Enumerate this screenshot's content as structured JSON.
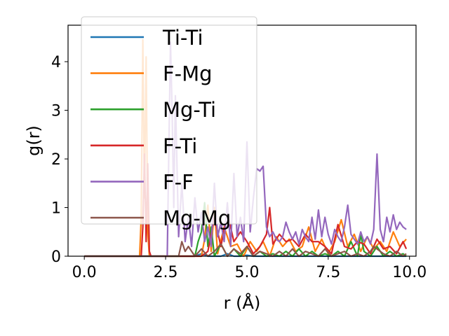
{
  "chart_data": {
    "type": "line",
    "xlabel": "r (Å)",
    "ylabel": "g(r)",
    "xlim": [
      -0.5,
      10.2
    ],
    "ylim": [
      0,
      4.75
    ],
    "xticks": [
      0.0,
      2.5,
      5.0,
      7.5,
      10.0
    ],
    "xtick_labels": [
      "0.0",
      "2.5",
      "5.0",
      "7.5",
      "10.0"
    ],
    "yticks": [
      0,
      1,
      2,
      3,
      4
    ],
    "ytick_labels": [
      "0",
      "1",
      "2",
      "3",
      "4"
    ],
    "grid": false,
    "legend_position": "upper-left",
    "series": [
      {
        "name": "Ti-Ti",
        "color": "#1f77b4",
        "x": [
          0.0,
          2.8,
          3.0,
          3.2,
          3.4,
          3.6,
          3.8,
          4.0,
          4.2,
          4.4,
          4.6,
          4.8,
          5.0,
          5.2,
          5.4,
          5.6,
          5.8,
          6.0,
          6.2,
          6.4,
          6.6,
          6.8,
          7.0,
          7.2,
          7.4,
          7.6,
          7.8,
          8.0,
          8.2,
          8.4,
          8.6,
          8.8,
          9.0,
          9.2,
          9.4,
          9.6,
          9.8,
          9.9
        ],
        "y": [
          0.0,
          0.0,
          0.0,
          0.0,
          0.0,
          0.05,
          0.0,
          0.0,
          0.0,
          0.05,
          0.0,
          0.0,
          0.02,
          0.0,
          0.0,
          0.0,
          0.0,
          0.0,
          0.0,
          0.0,
          0.0,
          0.0,
          0.0,
          0.0,
          0.0,
          0.0,
          0.0,
          0.0,
          0.0,
          0.0,
          0.0,
          0.0,
          0.0,
          0.0,
          0.0,
          0.0,
          0.0,
          0.0
        ]
      },
      {
        "name": "F-Mg",
        "color": "#ff7f0e",
        "x": [
          0.0,
          1.7,
          1.75,
          1.8,
          1.85,
          1.9,
          1.95,
          2.0,
          2.1,
          3.6,
          3.7,
          3.8,
          3.9,
          4.0,
          4.1,
          4.3,
          4.5,
          4.7,
          4.9,
          5.1,
          5.3,
          5.5,
          5.7,
          5.9,
          6.1,
          6.3,
          6.5,
          6.7,
          6.9,
          7.1,
          7.3,
          7.5,
          7.7,
          7.9,
          8.1,
          8.3,
          8.5,
          8.7,
          8.9,
          9.1,
          9.3,
          9.5,
          9.7,
          9.9
        ],
        "y": [
          0.0,
          0.0,
          0.8,
          4.45,
          1.2,
          4.1,
          0.5,
          0.0,
          0.0,
          0.0,
          0.35,
          1.05,
          0.1,
          1.0,
          0.05,
          0.6,
          0.2,
          0.25,
          0.0,
          0.3,
          0.1,
          0.3,
          0.0,
          0.4,
          0.2,
          0.35,
          0.1,
          0.2,
          0.6,
          0.1,
          0.35,
          0.05,
          0.3,
          0.75,
          0.2,
          0.45,
          0.1,
          0.4,
          0.15,
          0.3,
          0.1,
          0.5,
          0.2,
          0.35
        ]
      },
      {
        "name": "Mg-Ti",
        "color": "#2ca02c",
        "x": [
          0.0,
          3.4,
          3.5,
          3.6,
          3.7,
          3.8,
          3.9,
          4.0,
          4.2,
          4.4,
          4.6,
          4.8,
          5.0,
          5.2,
          5.4,
          5.6,
          5.8,
          6.0,
          6.2,
          6.4,
          6.6,
          6.8,
          7.0,
          7.2,
          7.4,
          7.6,
          7.8,
          8.0,
          8.2,
          8.4,
          8.5,
          8.6,
          8.8,
          9.0,
          9.2,
          9.4,
          9.6,
          9.8,
          9.9
        ],
        "y": [
          0.0,
          0.0,
          0.3,
          0.5,
          1.1,
          0.2,
          0.6,
          0.0,
          0.25,
          0.0,
          0.15,
          0.0,
          0.2,
          0.0,
          0.1,
          0.0,
          0.05,
          0.0,
          0.1,
          0.0,
          0.15,
          0.0,
          0.1,
          0.0,
          0.05,
          0.0,
          0.1,
          0.0,
          0.3,
          0.0,
          0.45,
          0.1,
          0.0,
          0.2,
          0.0,
          0.1,
          0.0,
          0.05,
          0.0
        ]
      },
      {
        "name": "F-Ti",
        "color": "#d62728",
        "x": [
          0.0,
          1.75,
          1.8,
          1.85,
          1.9,
          1.95,
          2.0,
          2.05,
          3.6,
          3.8,
          4.0,
          4.2,
          4.4,
          4.6,
          4.8,
          5.0,
          5.2,
          5.4,
          5.6,
          5.7,
          5.8,
          6.0,
          6.2,
          6.4,
          6.6,
          6.8,
          7.0,
          7.2,
          7.4,
          7.6,
          7.8,
          8.0,
          8.2,
          8.4,
          8.6,
          8.8,
          9.0,
          9.2,
          9.4,
          9.6,
          9.8,
          9.9
        ],
        "y": [
          0.0,
          0.0,
          0.6,
          2.1,
          0.3,
          1.9,
          0.1,
          0.0,
          0.0,
          0.1,
          0.8,
          0.2,
          0.9,
          0.3,
          0.5,
          0.3,
          0.05,
          0.2,
          0.45,
          1.0,
          0.25,
          0.45,
          0.3,
          0.35,
          0.2,
          0.45,
          0.3,
          0.3,
          0.2,
          0.05,
          0.65,
          0.2,
          0.15,
          0.3,
          0.25,
          0.05,
          0.35,
          0.15,
          0.2,
          0.05,
          0.3,
          0.15
        ]
      },
      {
        "name": "F-F",
        "color": "#9467bd",
        "x": [
          0.0,
          2.55,
          2.6,
          2.65,
          2.7,
          2.75,
          2.8,
          2.9,
          3.0,
          3.1,
          3.2,
          3.3,
          3.4,
          3.5,
          3.6,
          3.7,
          3.8,
          3.9,
          4.0,
          4.1,
          4.2,
          4.3,
          4.4,
          4.5,
          4.6,
          4.7,
          4.8,
          4.9,
          5.0,
          5.1,
          5.2,
          5.3,
          5.4,
          5.5,
          5.6,
          5.7,
          5.8,
          5.9,
          6.0,
          6.1,
          6.2,
          6.3,
          6.4,
          6.5,
          6.6,
          6.7,
          6.8,
          6.9,
          7.0,
          7.1,
          7.2,
          7.3,
          7.4,
          7.5,
          7.6,
          7.7,
          7.8,
          7.9,
          8.0,
          8.1,
          8.2,
          8.3,
          8.4,
          8.5,
          8.6,
          8.7,
          8.8,
          8.9,
          9.0,
          9.1,
          9.2,
          9.3,
          9.4,
          9.5,
          9.6,
          9.7,
          9.8,
          9.9
        ],
        "y": [
          0.0,
          0.0,
          2.2,
          4.4,
          3.0,
          1.0,
          3.3,
          0.4,
          1.5,
          0.3,
          0.8,
          0.2,
          1.2,
          0.5,
          0.9,
          0.3,
          0.6,
          0.2,
          1.5,
          0.4,
          0.7,
          0.3,
          1.1,
          0.2,
          1.7,
          0.4,
          0.8,
          0.3,
          2.35,
          0.5,
          1.2,
          1.8,
          1.75,
          1.85,
          0.6,
          0.4,
          0.5,
          0.35,
          0.3,
          0.4,
          0.7,
          0.5,
          0.35,
          0.5,
          0.25,
          0.55,
          0.4,
          0.3,
          0.8,
          0.35,
          0.95,
          0.4,
          0.8,
          0.45,
          0.25,
          0.55,
          0.4,
          0.3,
          0.6,
          1.05,
          0.45,
          0.35,
          0.25,
          0.5,
          0.3,
          0.4,
          0.25,
          0.55,
          2.1,
          0.55,
          0.3,
          0.8,
          0.5,
          0.85,
          0.55,
          0.7,
          0.6,
          0.55
        ]
      },
      {
        "name": "Mg-Mg",
        "color": "#8c564b",
        "x": [
          0.0,
          2.9,
          3.0,
          3.1,
          3.2,
          3.4,
          3.6,
          3.8,
          4.0,
          4.2,
          4.4,
          4.6,
          4.8,
          5.0,
          5.2,
          5.4,
          5.6,
          5.8,
          6.0,
          6.2,
          6.4,
          6.6,
          6.8,
          7.0,
          7.2,
          7.4,
          7.6,
          7.8,
          8.0,
          8.2,
          8.4,
          8.6,
          8.8,
          8.9,
          9.0,
          9.2,
          9.4,
          9.6,
          9.8,
          9.9
        ],
        "y": [
          0.0,
          0.0,
          0.3,
          0.1,
          0.2,
          0.0,
          0.15,
          0.0,
          0.1,
          0.25,
          0.0,
          0.15,
          0.05,
          0.2,
          0.0,
          0.1,
          0.05,
          0.0,
          0.1,
          0.0,
          0.15,
          0.0,
          0.1,
          0.05,
          0.0,
          0.15,
          0.0,
          0.05,
          0.1,
          0.0,
          0.05,
          0.0,
          0.1,
          0.2,
          0.15,
          0.05,
          0.0,
          0.1,
          0.0,
          0.05
        ]
      }
    ]
  }
}
